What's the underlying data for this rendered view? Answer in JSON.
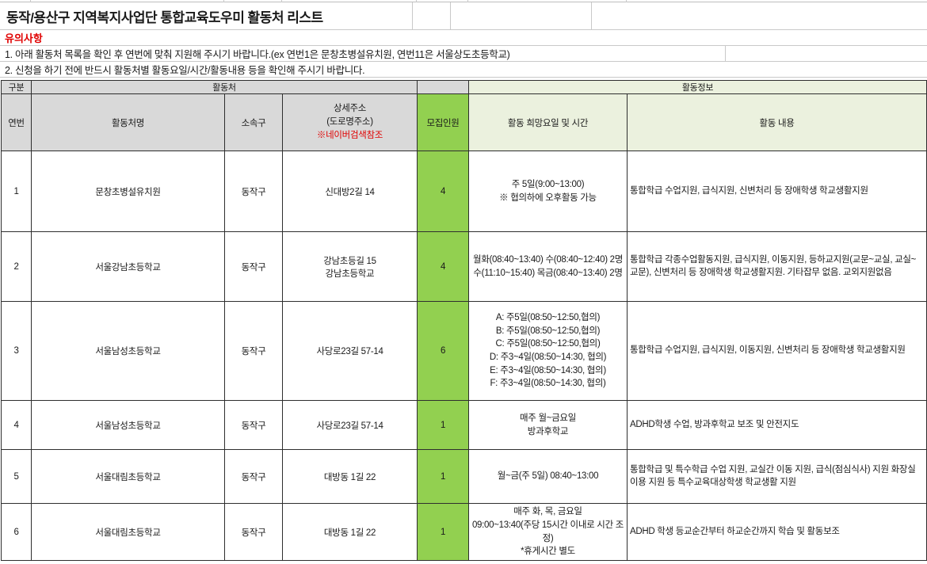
{
  "page": {
    "title": "동작/용산구 지역복지사업단 통합교육도우미 활동처 리스트",
    "notice_heading": "유의사항",
    "note1": "1. 아래 활동처 목록을 확인 후 연번에 맞춰 지원해 주시기 바랍니다.(ex 연번1은 문창초병설유치원, 연번11은 서울상도초등학교)",
    "note2": "2. 신청을 하기 전에 반드시 활동처별 활동요일/시간/활동내용 등을 확인해 주시기 바랍니다."
  },
  "colors": {
    "capacity_green": "#92d050",
    "header_grey": "#d9d9d9",
    "header_pale_green": "#ebf1de",
    "notice_red": "#e00000"
  },
  "table": {
    "group_gubun": "구분",
    "group_site": "활동처",
    "group_info": "활동정보",
    "col_no": "연번",
    "col_name": "활동처명",
    "col_district": "소속구",
    "col_addr_line1": "상세주소",
    "col_addr_line2": "(도로명주소)",
    "col_addr_line3": "※네이버검색참조",
    "col_capacity": "모집인원",
    "col_schedule": "활동 희망요일 및 시간",
    "col_content": "활동 내용",
    "rows": [
      {
        "no": "1",
        "name": "문창초병설유치원",
        "district": "동작구",
        "address": "신대방2길 14",
        "capacity": "4",
        "schedule": "주 5일(9:00~13:00)\n※ 협의하에 오후활동 가능",
        "content": "통합학급 수업지원, 급식지원, 신변처리 등 장애학생 학교생활지원"
      },
      {
        "no": "2",
        "name": "서울강남초등학교",
        "district": "동작구",
        "address": "강남초등길 15\n강남초등학교",
        "capacity": "4",
        "schedule": "월화(08:40~13:40) 수(08:40~12:40) 2명\n수(11:10~15:40) 목금(08:40~13:40) 2명",
        "content": "통합학급 각종수업활동지원, 급식지원, 이동지원, 등하교지원(교문~교실, 교실~교문), 신변처리 등 장애학생 학교생활지원. 기타잡무 없음. 교외지원없음"
      },
      {
        "no": "3",
        "name": "서울남성초등학교",
        "district": "동작구",
        "address": "사당로23길 57-14",
        "capacity": "6",
        "schedule": "A: 주5일(08:50~12:50,협의)\nB: 주5일(08:50~12:50,협의)\nC: 주5일(08:50~12:50,협의)\nD: 주3~4일(08:50~14:30, 협의)\nE: 주3~4일(08:50~14:30, 협의)\nF: 주3~4일(08:50~14:30, 협의)",
        "content": "통합학급 수업지원, 급식지원, 이동지원, 신변처리 등 장애학생 학교생활지원"
      },
      {
        "no": "4",
        "name": "서울남성초등학교",
        "district": "동작구",
        "address": "사당로23길 57-14",
        "capacity": "1",
        "schedule": "매주 월~금요일\n방과후학교",
        "content": "ADHD학생 수업, 방과후학교 보조 및 안전지도"
      },
      {
        "no": "5",
        "name": "서울대림초등학교",
        "district": "동작구",
        "address": "대방동 1길 22",
        "capacity": "1",
        "schedule": "월~금(주 5일) 08:40~13:00",
        "content": "통합학급 및 특수학급 수업 지원, 교실간 이동 지원, 급식(점심식사) 지원 화장실 이용 지원 등 특수교육대상학생 학교생활 지원"
      },
      {
        "no": "6",
        "name": "서울대림초등학교",
        "district": "동작구",
        "address": "대방동 1길 22",
        "capacity": "1",
        "schedule": "매주 화, 목, 금요일\n09:00~13:40(주당 15시간 이내로 시간 조정)\n*휴게시간 별도",
        "content": "ADHD 학생 등교순간부터 하교순간까지 학습 및 활동보조"
      }
    ]
  }
}
